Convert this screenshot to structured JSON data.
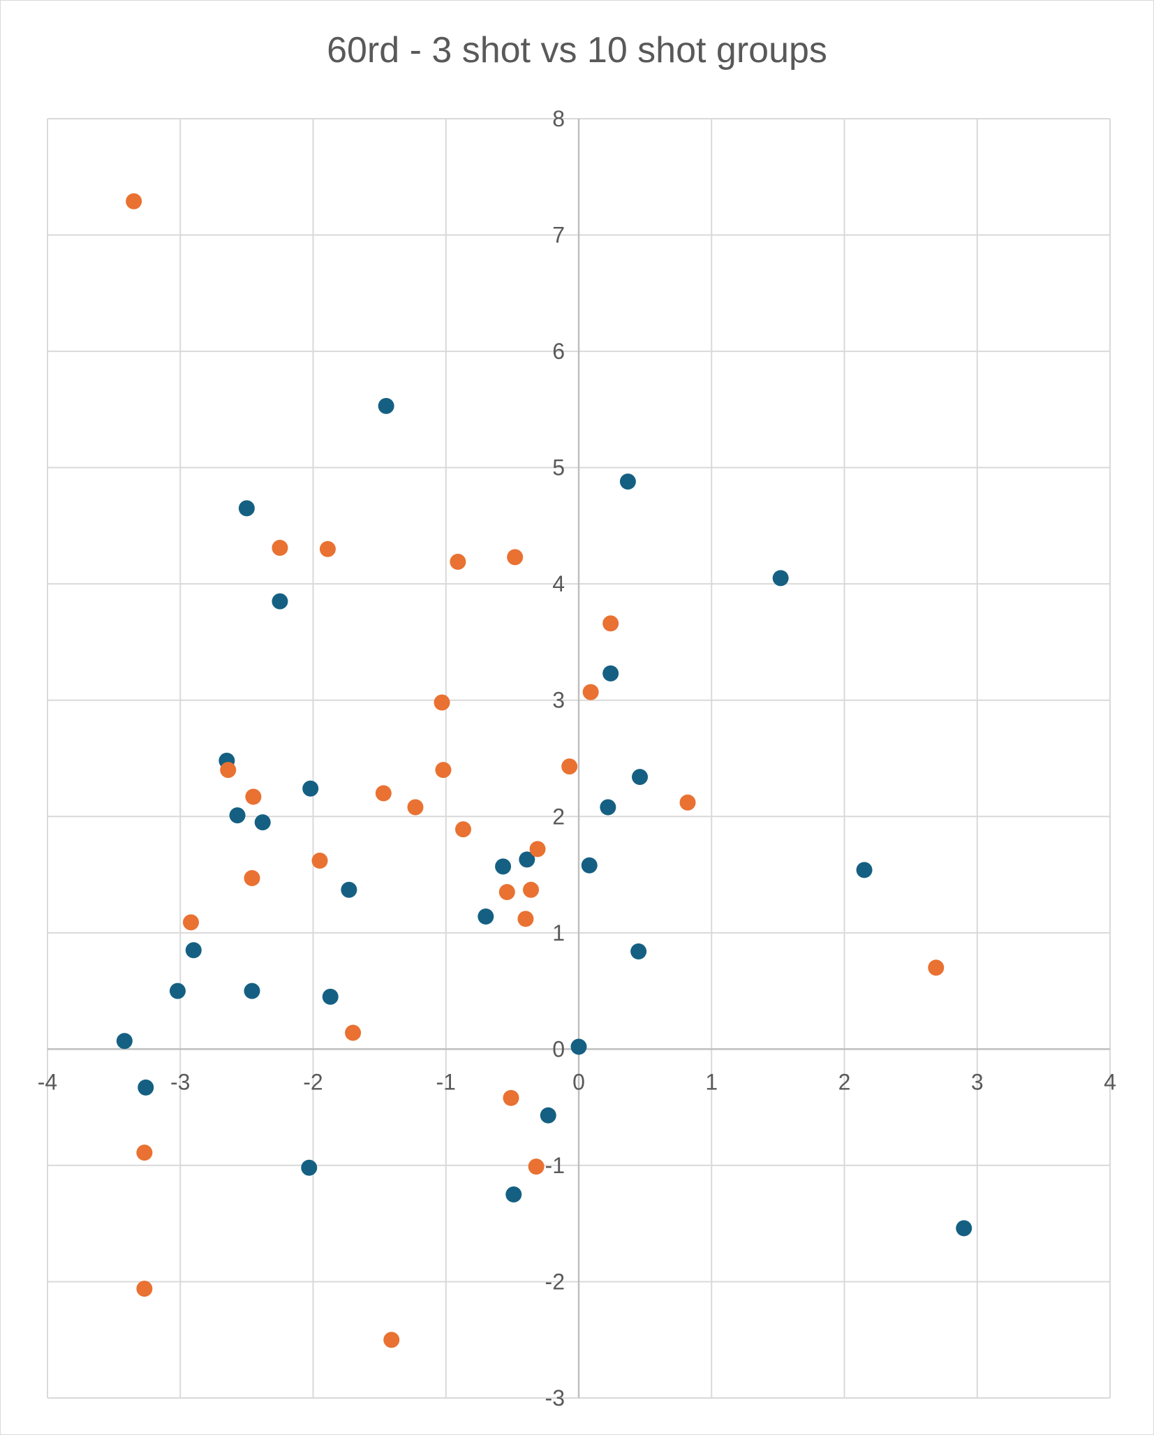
{
  "chart_data": {
    "type": "scatter",
    "title": "60rd - 3 shot vs 10 shot groups",
    "xlabel": "",
    "ylabel": "",
    "xlim": [
      -4,
      4
    ],
    "ylim": [
      -3,
      8
    ],
    "x_ticks": [
      "-4",
      "-3",
      "-2",
      "-1",
      "0",
      "1",
      "2",
      "3",
      "4"
    ],
    "y_ticks": [
      "-3",
      "-2",
      "-1",
      "0",
      "1",
      "2",
      "3",
      "4",
      "5",
      "6",
      "7",
      "8"
    ],
    "grid": true,
    "legend": "none",
    "series": [
      {
        "color": "#156082",
        "points": [
          [
            -1.45,
            5.53
          ],
          [
            0.37,
            4.88
          ],
          [
            -2.5,
            4.65
          ],
          [
            1.52,
            4.05
          ],
          [
            -2.25,
            3.85
          ],
          [
            0.24,
            3.23
          ],
          [
            -2.65,
            2.48
          ],
          [
            -2.02,
            2.24
          ],
          [
            0.46,
            2.34
          ],
          [
            0.22,
            2.08
          ],
          [
            -2.57,
            2.01
          ],
          [
            -2.38,
            1.95
          ],
          [
            -0.57,
            1.57
          ],
          [
            -0.39,
            1.63
          ],
          [
            0.08,
            1.58
          ],
          [
            2.15,
            1.54
          ],
          [
            -1.73,
            1.37
          ],
          [
            -0.7,
            1.14
          ],
          [
            -2.9,
            0.85
          ],
          [
            0.45,
            0.84
          ],
          [
            -3.02,
            0.5
          ],
          [
            -2.46,
            0.5
          ],
          [
            -1.87,
            0.45
          ],
          [
            -3.42,
            0.07
          ],
          [
            0.0,
            0.02
          ],
          [
            -3.26,
            -0.33
          ],
          [
            -0.23,
            -0.57
          ],
          [
            -2.03,
            -1.02
          ],
          [
            -0.49,
            -1.25
          ],
          [
            2.9,
            -1.54
          ]
        ]
      },
      {
        "color": "#E97132",
        "points": [
          [
            -3.35,
            7.29
          ],
          [
            -2.25,
            4.31
          ],
          [
            -1.89,
            4.3
          ],
          [
            -0.91,
            4.19
          ],
          [
            -0.48,
            4.23
          ],
          [
            0.24,
            3.66
          ],
          [
            0.09,
            3.07
          ],
          [
            -1.03,
            2.98
          ],
          [
            -2.64,
            2.4
          ],
          [
            -1.02,
            2.4
          ],
          [
            -0.07,
            2.43
          ],
          [
            -2.45,
            2.17
          ],
          [
            -1.47,
            2.2
          ],
          [
            -1.23,
            2.08
          ],
          [
            0.82,
            2.12
          ],
          [
            -0.87,
            1.89
          ],
          [
            -0.31,
            1.72
          ],
          [
            -1.95,
            1.62
          ],
          [
            -2.46,
            1.47
          ],
          [
            -0.54,
            1.35
          ],
          [
            -0.36,
            1.37
          ],
          [
            -0.4,
            1.12
          ],
          [
            -2.92,
            1.09
          ],
          [
            2.69,
            0.7
          ],
          [
            -1.7,
            0.14
          ],
          [
            -0.51,
            -0.42
          ],
          [
            -0.32,
            -1.01
          ],
          [
            -3.27,
            -0.89
          ],
          [
            -3.27,
            -2.06
          ],
          [
            -1.41,
            -2.5
          ]
        ]
      }
    ]
  }
}
